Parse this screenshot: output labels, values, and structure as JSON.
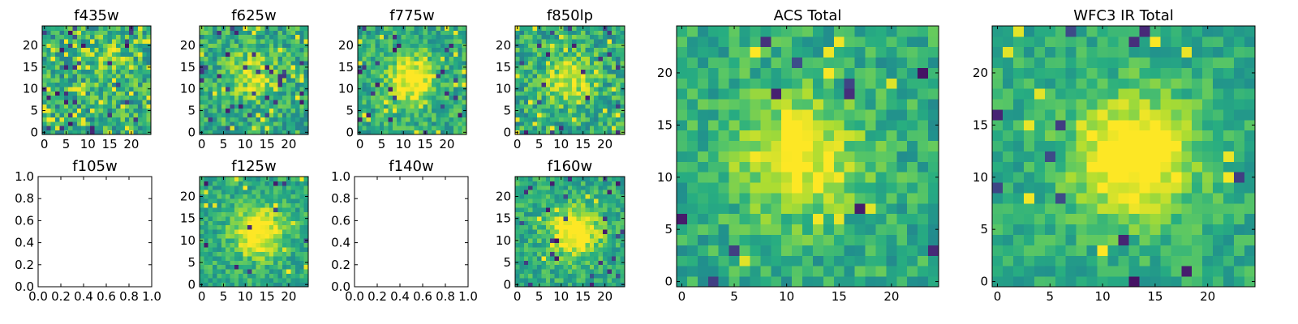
{
  "figure": {
    "description_free": true
  },
  "chart_data": [
    {
      "type": "heatmap",
      "title": "f435w",
      "colormap": "viridis",
      "has_image": true,
      "grid_size": 25,
      "xticks": [
        "0",
        "5",
        "10",
        "15",
        "20"
      ],
      "yticks": [
        "0",
        "5",
        "10",
        "15",
        "20"
      ],
      "xlim": [
        -0.5,
        24.5
      ],
      "ylim": [
        -0.5,
        24.5
      ],
      "seed": 11,
      "center": [
        15,
        17
      ],
      "blob_strength": 0.15,
      "noise": 0.45,
      "dark_fraction": 0.05,
      "bright_fraction": 0.08
    },
    {
      "type": "heatmap",
      "title": "f625w",
      "colormap": "viridis",
      "has_image": true,
      "grid_size": 25,
      "xticks": [
        "0",
        "5",
        "10",
        "15",
        "20"
      ],
      "yticks": [
        "0",
        "5",
        "10",
        "15",
        "20"
      ],
      "xlim": [
        -0.5,
        24.5
      ],
      "ylim": [
        -0.5,
        24.5
      ],
      "seed": 23,
      "center": [
        12,
        13
      ],
      "blob_strength": 0.3,
      "noise": 0.4,
      "dark_fraction": 0.04,
      "bright_fraction": 0.05
    },
    {
      "type": "heatmap",
      "title": "f775w",
      "colormap": "viridis",
      "has_image": true,
      "grid_size": 25,
      "xticks": [
        "0",
        "5",
        "10",
        "15",
        "20"
      ],
      "yticks": [
        "0",
        "5",
        "10",
        "15",
        "20"
      ],
      "xlim": [
        -0.5,
        24.5
      ],
      "ylim": [
        -0.5,
        24.5
      ],
      "seed": 37,
      "center": [
        12,
        12
      ],
      "blob_strength": 0.45,
      "noise": 0.35,
      "dark_fraction": 0.03,
      "bright_fraction": 0.03
    },
    {
      "type": "heatmap",
      "title": "f850lp",
      "colormap": "viridis",
      "has_image": true,
      "grid_size": 25,
      "xticks": [
        "0",
        "5",
        "10",
        "15",
        "20"
      ],
      "yticks": [
        "0",
        "5",
        "10",
        "15",
        "20"
      ],
      "xlim": [
        -0.5,
        24.5
      ],
      "ylim": [
        -0.5,
        24.5
      ],
      "seed": 41,
      "center": [
        12,
        12
      ],
      "blob_strength": 0.35,
      "noise": 0.4,
      "dark_fraction": 0.04,
      "bright_fraction": 0.05
    },
    {
      "type": "empty",
      "title": "f105w",
      "has_image": false,
      "xticks": [
        "0.0",
        "0.2",
        "0.4",
        "0.6",
        "0.8",
        "1.0"
      ],
      "yticks": [
        "0.0",
        "0.2",
        "0.4",
        "0.6",
        "0.8",
        "1.0"
      ],
      "xlim": [
        0,
        1
      ],
      "ylim": [
        0,
        1
      ]
    },
    {
      "type": "heatmap",
      "title": "f125w",
      "colormap": "viridis",
      "has_image": true,
      "grid_size": 25,
      "xticks": [
        "0",
        "5",
        "10",
        "15",
        "20"
      ],
      "yticks": [
        "0",
        "5",
        "10",
        "15",
        "20"
      ],
      "xlim": [
        -0.5,
        24.5
      ],
      "ylim": [
        -0.5,
        24.5
      ],
      "seed": 53,
      "center": [
        13,
        12
      ],
      "blob_strength": 0.5,
      "noise": 0.3,
      "dark_fraction": 0.03,
      "bright_fraction": 0.02
    },
    {
      "type": "empty",
      "title": "f140w",
      "has_image": false,
      "xticks": [
        "0.0",
        "0.2",
        "0.4",
        "0.6",
        "0.8",
        "1.0"
      ],
      "yticks": [
        "0.0",
        "0.2",
        "0.4",
        "0.6",
        "0.8",
        "1.0"
      ],
      "xlim": [
        0,
        1
      ],
      "ylim": [
        0,
        1
      ]
    },
    {
      "type": "heatmap",
      "title": "f160w",
      "colormap": "viridis",
      "has_image": true,
      "grid_size": 25,
      "xticks": [
        "0",
        "5",
        "10",
        "15",
        "20"
      ],
      "yticks": [
        "0",
        "5",
        "10",
        "15",
        "20"
      ],
      "xlim": [
        -0.5,
        24.5
      ],
      "ylim": [
        -0.5,
        24.5
      ],
      "seed": 67,
      "center": [
        13,
        12
      ],
      "blob_strength": 0.5,
      "noise": 0.3,
      "dark_fraction": 0.04,
      "bright_fraction": 0.02
    },
    {
      "type": "heatmap",
      "title": "ACS Total",
      "colormap": "viridis",
      "has_image": true,
      "grid_size": 25,
      "xticks": [
        "0",
        "5",
        "10",
        "15",
        "20"
      ],
      "yticks": [
        "0",
        "5",
        "10",
        "15",
        "20"
      ],
      "xlim": [
        -0.5,
        24.5
      ],
      "ylim": [
        -0.5,
        24.5
      ],
      "seed": 79,
      "center": [
        11,
        12
      ],
      "blob_strength": 0.45,
      "noise": 0.3,
      "dark_fraction": 0.03,
      "bright_fraction": 0.02
    },
    {
      "type": "heatmap",
      "title": "WFC3 IR Total",
      "colormap": "viridis",
      "has_image": true,
      "grid_size": 25,
      "xticks": [
        "0",
        "5",
        "10",
        "15",
        "20"
      ],
      "yticks": [
        "0",
        "5",
        "10",
        "15",
        "20"
      ],
      "xlim": [
        -0.5,
        24.5
      ],
      "ylim": [
        -0.5,
        24.5
      ],
      "seed": 97,
      "center": [
        13,
        12
      ],
      "blob_strength": 0.55,
      "noise": 0.25,
      "dark_fraction": 0.03,
      "bright_fraction": 0.01
    }
  ]
}
